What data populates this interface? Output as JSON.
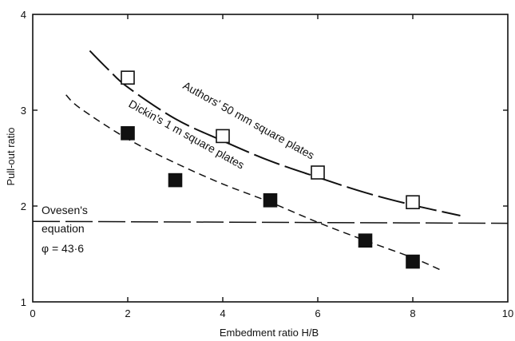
{
  "chart_data": {
    "type": "scatter",
    "xlabel": "Embedment ratio H/B",
    "ylabel": "Pull-out ratio",
    "xlim": [
      0,
      10
    ],
    "ylim": [
      1,
      4
    ],
    "x_ticks": [
      "0",
      "2",
      "4",
      "6",
      "8",
      "10"
    ],
    "y_ticks": [
      "1",
      "2",
      "3",
      "4"
    ],
    "grid": false,
    "series": [
      {
        "name": "Authors' 50 mm square plates",
        "marker": "open-square",
        "x": [
          2,
          4,
          6,
          8
        ],
        "y": [
          3.34,
          2.73,
          2.35,
          2.04
        ]
      },
      {
        "name": "Dickin's 1 m square plates",
        "marker": "filled-square",
        "x": [
          2,
          3,
          5,
          7,
          8
        ],
        "y": [
          2.76,
          2.27,
          2.06,
          1.64,
          1.42
        ]
      }
    ],
    "curves": [
      {
        "name": "Authors' 50 mm square plates",
        "style": "long-dash",
        "x": [
          1.2,
          1.6,
          2.0,
          3.0,
          4.0,
          5.0,
          6.0,
          7.0,
          8.0,
          9.0
        ],
        "y": [
          3.62,
          3.42,
          3.24,
          2.91,
          2.68,
          2.47,
          2.3,
          2.14,
          2.01,
          1.9
        ]
      },
      {
        "name": "Dickin's 1 m square plates",
        "style": "dash",
        "x": [
          0.7,
          1.0,
          2.0,
          3.0,
          4.0,
          5.0,
          6.0,
          7.0,
          8.0,
          8.6
        ],
        "y": [
          3.16,
          3.02,
          2.7,
          2.45,
          2.23,
          2.04,
          1.83,
          1.64,
          1.46,
          1.33
        ]
      },
      {
        "name": "Ovesen's equation",
        "style": "long-dash",
        "x": [
          0,
          10
        ],
        "y": [
          1.84,
          1.82
        ]
      }
    ],
    "annotations": {
      "authors": "Authors' 50 mm square plates",
      "dickin": "Dickin's 1 m square plates",
      "ovesen_line1": "Ovesen's",
      "ovesen_line2": "equation",
      "ovesen_line3": "φ = 43·6"
    }
  }
}
